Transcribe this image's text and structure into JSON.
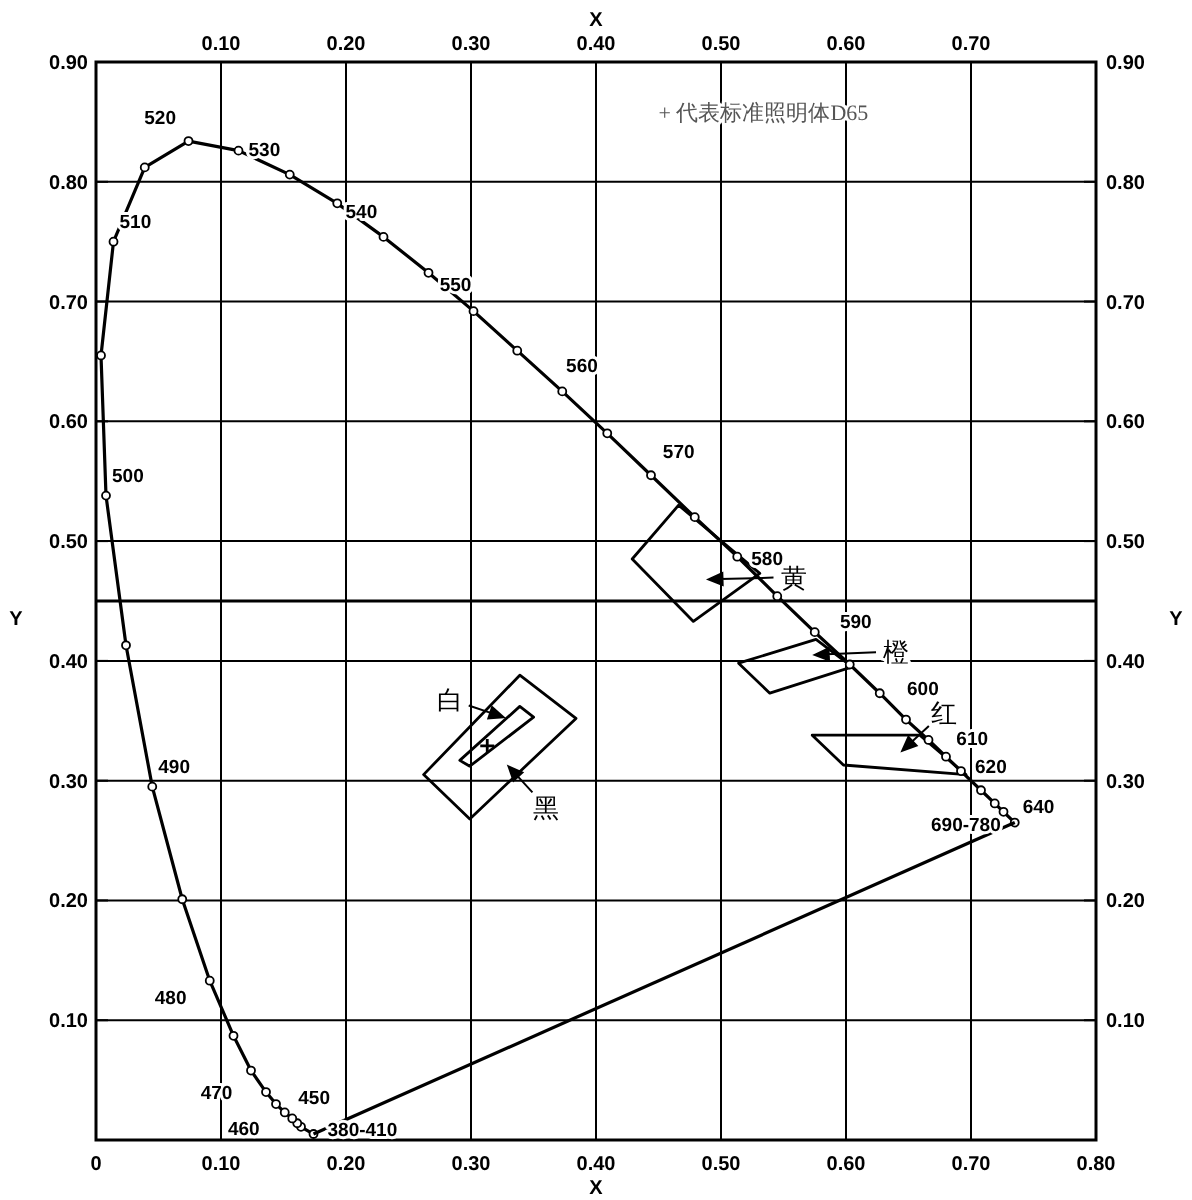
{
  "chart_data": {
    "type": "line",
    "xlabel": "X",
    "x2label": "X",
    "ylabel": "Y",
    "y2label": "Y",
    "xlim": [
      0,
      0.8
    ],
    "ylim": [
      0,
      0.9
    ],
    "x2lim": [
      0,
      0.8
    ],
    "y2lim": [
      0,
      0.9
    ],
    "xticks": [
      0,
      {
        "value": 0.1,
        "label": "0.10"
      },
      {
        "value": 0.2,
        "label": "0.20"
      },
      {
        "value": 0.3,
        "label": "0.30"
      },
      {
        "value": 0.4,
        "label": "0.40"
      },
      {
        "value": 0.5,
        "label": "0.50"
      },
      {
        "value": 0.6,
        "label": "0.60"
      },
      {
        "value": 0.7,
        "label": "0.70"
      },
      {
        "value": 0.8,
        "label": "0.80"
      }
    ],
    "x2ticks": [
      {
        "value": 0.1,
        "label": "0.10"
      },
      {
        "value": 0.2,
        "label": "0.20"
      },
      {
        "value": 0.3,
        "label": "0.30"
      },
      {
        "value": 0.4,
        "label": "0.40"
      },
      {
        "value": 0.5,
        "label": "0.50"
      },
      {
        "value": 0.6,
        "label": "0.60"
      },
      {
        "value": 0.7,
        "label": "0.70"
      }
    ],
    "yticks": [
      {
        "value": 0.1,
        "label": "0.10"
      },
      {
        "value": 0.2,
        "label": "0.20"
      },
      {
        "value": 0.3,
        "label": "0.30"
      },
      {
        "value": 0.4,
        "label": "0.40"
      },
      {
        "value": 0.5,
        "label": "0.50"
      },
      {
        "value": 0.6,
        "label": "0.60"
      },
      {
        "value": 0.7,
        "label": "0.70"
      },
      {
        "value": 0.8,
        "label": "0.80"
      },
      {
        "value": 0.9,
        "label": "0.90"
      }
    ],
    "y2ticks": [
      {
        "value": 0.1,
        "label": "0.10"
      },
      {
        "value": 0.2,
        "label": "0.20"
      },
      {
        "value": 0.3,
        "label": "0.30"
      },
      {
        "value": 0.4,
        "label": "0.40"
      },
      {
        "value": 0.5,
        "label": "0.50"
      },
      {
        "value": 0.6,
        "label": "0.60"
      },
      {
        "value": 0.7,
        "label": "0.70"
      },
      {
        "value": 0.8,
        "label": "0.80"
      },
      {
        "value": 0.9,
        "label": "0.90"
      }
    ],
    "grid": true,
    "series": [
      {
        "color": "#000000",
        "marker": "circle",
        "x": [
          0.174,
          0.164,
          0.161,
          0.157,
          0.151,
          0.144,
          0.136,
          0.124,
          0.11,
          0.091,
          0.069,
          0.045,
          0.024,
          0.008,
          0.004,
          0.014,
          0.039,
          0.074,
          0.114,
          0.155,
          0.193,
          0.23,
          0.266,
          0.302,
          0.337,
          0.373,
          0.409,
          0.444,
          0.479,
          0.513,
          0.545,
          0.575,
          0.603,
          0.627,
          0.648,
          0.666,
          0.68,
          0.692,
          0.708,
          0.719,
          0.726,
          0.735
        ],
        "values": [
          0.005,
          0.011,
          0.014,
          0.018,
          0.023,
          0.03,
          0.04,
          0.058,
          0.087,
          0.133,
          0.201,
          0.295,
          0.413,
          0.538,
          0.655,
          0.75,
          0.812,
          0.834,
          0.826,
          0.806,
          0.782,
          0.754,
          0.724,
          0.692,
          0.659,
          0.625,
          0.59,
          0.555,
          0.52,
          0.487,
          0.454,
          0.424,
          0.397,
          0.373,
          0.351,
          0.334,
          0.32,
          0.308,
          0.292,
          0.281,
          0.274,
          0.265
        ]
      },
      {
        "color": "#000000",
        "marker": "none",
        "x": [
          0.174,
          0.735
        ],
        "values": [
          0.005,
          0.265
        ]
      },
      {
        "type": "scatter",
        "color": "#000000",
        "marker": "cross",
        "x": [
          0.313
        ],
        "values": [
          0.329
        ]
      }
    ],
    "ref_lines": [
      {
        "axis": "y",
        "value": 0.45,
        "color": "#000000"
      }
    ],
    "annotations": [
      {
        "text": "520",
        "x": 0.074,
        "y": 0.834
      },
      {
        "text": "530",
        "x": 0.155,
        "y": 0.806
      },
      {
        "text": "540",
        "x": 0.23,
        "y": 0.754
      },
      {
        "text": "550",
        "x": 0.302,
        "y": 0.692
      },
      {
        "text": "560",
        "x": 0.373,
        "y": 0.625
      },
      {
        "text": "570",
        "x": 0.444,
        "y": 0.555
      },
      {
        "text": "580",
        "x": 0.513,
        "y": 0.487
      },
      {
        "text": "590",
        "x": 0.575,
        "y": 0.424
      },
      {
        "text": "600",
        "x": 0.627,
        "y": 0.373
      },
      {
        "text": "610",
        "x": 0.666,
        "y": 0.334
      },
      {
        "text": "620",
        "x": 0.692,
        "y": 0.308
      },
      {
        "text": "640",
        "x": 0.719,
        "y": 0.281
      },
      {
        "text": "690-780",
        "x": 0.735,
        "y": 0.265
      },
      {
        "text": "510",
        "x": 0.014,
        "y": 0.75
      },
      {
        "text": "500",
        "x": 0.008,
        "y": 0.538
      },
      {
        "text": "490",
        "x": 0.045,
        "y": 0.295
      },
      {
        "text": "480",
        "x": 0.091,
        "y": 0.133
      },
      {
        "text": "470",
        "x": 0.124,
        "y": 0.058
      },
      {
        "text": "460",
        "x": 0.144,
        "y": 0.03
      },
      {
        "text": "450",
        "x": 0.157,
        "y": 0.018
      },
      {
        "text": "380-410",
        "x": 0.174,
        "y": 0.005
      },
      "+ 代表标准照明体D65",
      "白",
      "黑",
      "黄",
      "橙",
      "红"
    ]
  }
}
